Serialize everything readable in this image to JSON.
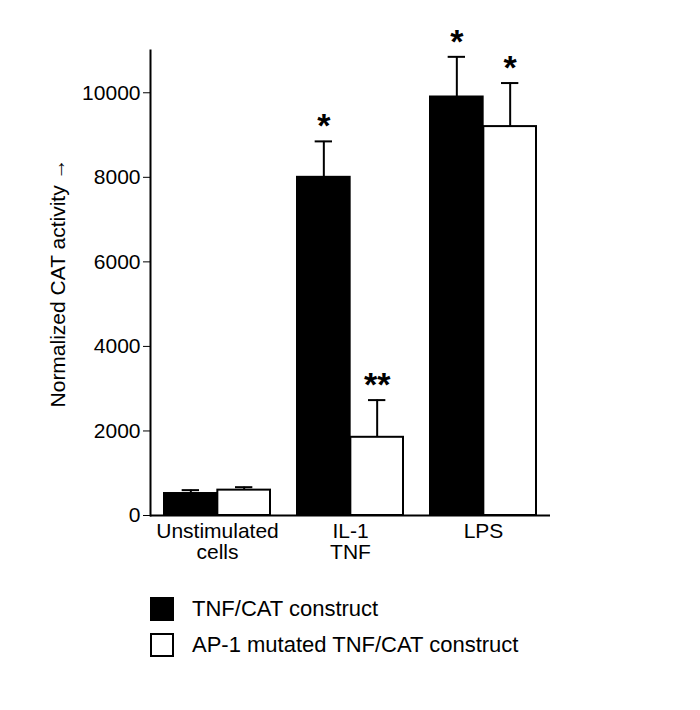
{
  "chart_data": {
    "type": "bar",
    "categories": [
      "Unstimulated\ncells",
      "IL-1\nTNF",
      "LPS"
    ],
    "y_label": "Normalized CAT activity",
    "ylim": [
      0,
      11000
    ],
    "yticks": [
      0,
      2000,
      4000,
      6000,
      8000,
      10000
    ],
    "legend": "bottom",
    "series": [
      {
        "name": "TNF/CAT construct",
        "color": "#000000",
        "values": [
          520,
          8000,
          9900
        ],
        "errors": [
          80,
          850,
          950
        ],
        "annotations": [
          null,
          "*",
          "*"
        ]
      },
      {
        "name": "AP-1 mutated TNF/CAT construct",
        "color": "#ffffff",
        "values": [
          600,
          1850,
          9200
        ],
        "errors": [
          70,
          880,
          1030
        ],
        "annotations": [
          null,
          "**",
          "*"
        ]
      }
    ]
  }
}
